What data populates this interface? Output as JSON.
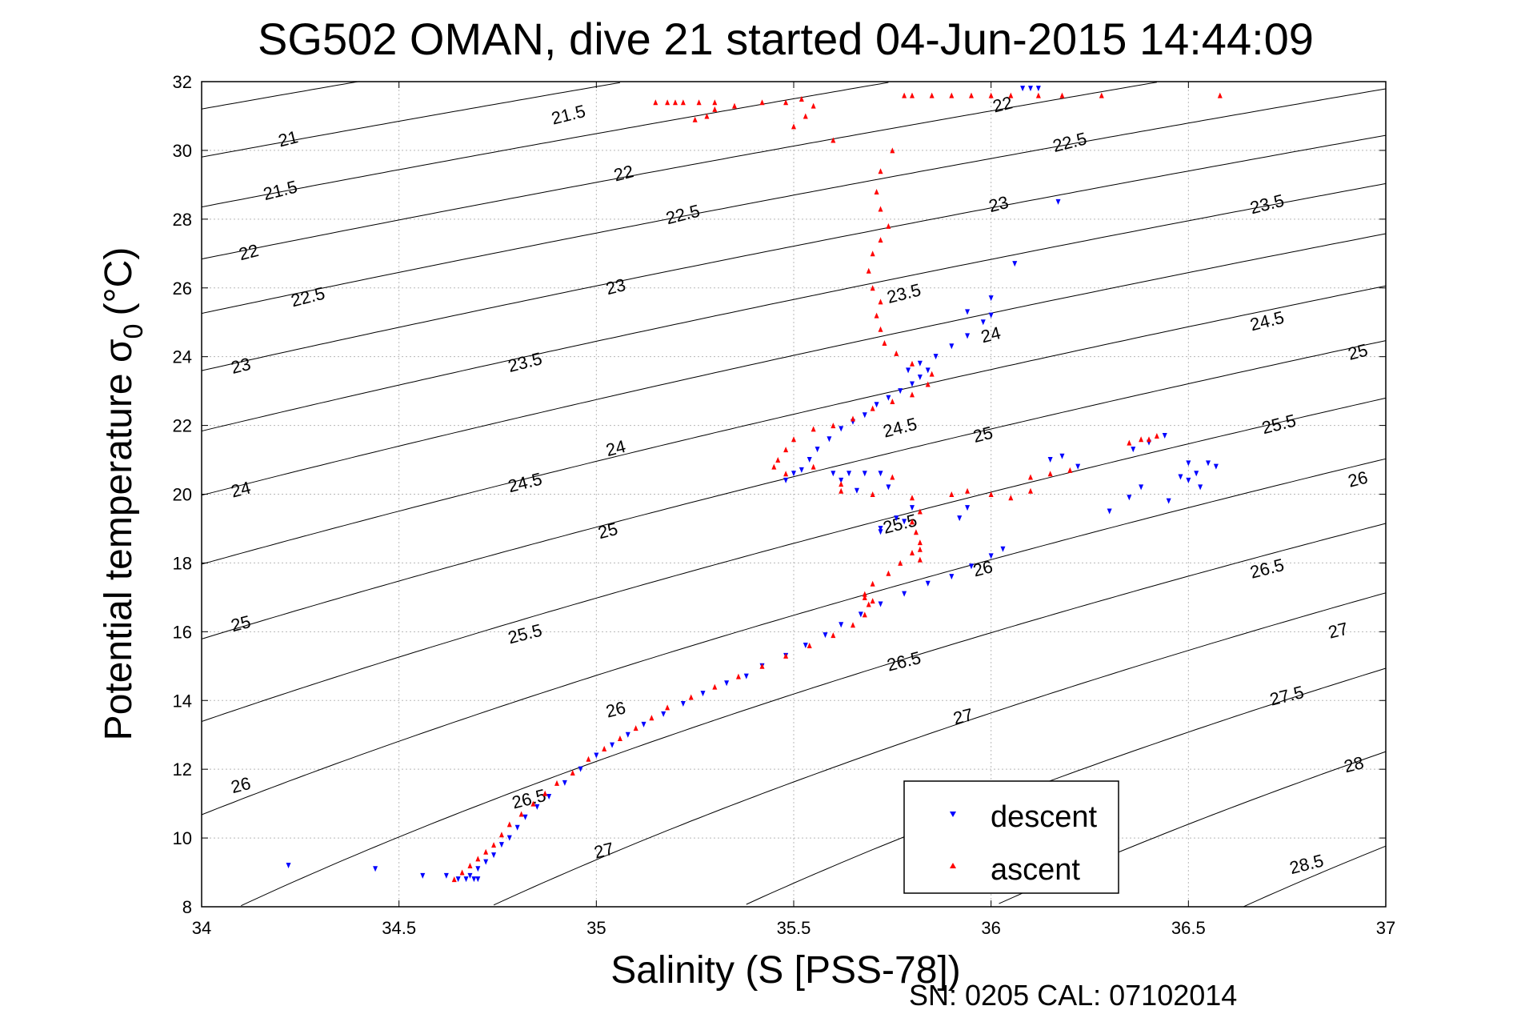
{
  "chart_data": {
    "type": "scatter",
    "title": "SG502 OMAN, dive 21 started 04-Jun-2015 14:44:09",
    "xlabel": "Salinity (S [PSS-78])",
    "ylabel_main": "Potential temperature σ",
    "ylabel_sub": "0",
    "ylabel_unit": "(°C)",
    "xlim": [
      34,
      37
    ],
    "ylim": [
      8,
      32
    ],
    "xticks": [
      34,
      34.5,
      35,
      35.5,
      36,
      36.5,
      37
    ],
    "xtick_labels": [
      "34",
      "34.5",
      "35",
      "35.5",
      "36",
      "36.5",
      "37"
    ],
    "yticks": [
      8,
      10,
      12,
      14,
      16,
      18,
      20,
      22,
      24,
      26,
      28,
      30,
      32
    ],
    "ytick_labels": [
      "8",
      "10",
      "12",
      "14",
      "16",
      "18",
      "20",
      "22",
      "24",
      "26",
      "28",
      "30",
      "32"
    ],
    "grid": true,
    "legend_position": "bottom-right",
    "footer": "SN: 0205  CAL: 07102014",
    "colors": {
      "descent": "#0000ff",
      "ascent": "#ff0000",
      "contour": "#000000"
    },
    "density_contours": {
      "levels": [
        20.5,
        21,
        21.5,
        22,
        22.5,
        23,
        23.5,
        24,
        24.5,
        25,
        25.5,
        26,
        26.5,
        27,
        27.5,
        28,
        28.5
      ],
      "labels": [
        {
          "text": "21",
          "s": 34.22,
          "t": 30.3
        },
        {
          "text": "21.5",
          "s": 34.2,
          "t": 28.8
        },
        {
          "text": "22",
          "s": 34.12,
          "t": 27.0
        },
        {
          "text": "22.5",
          "s": 34.27,
          "t": 25.7
        },
        {
          "text": "23",
          "s": 34.1,
          "t": 23.7
        },
        {
          "text": "24",
          "s": 34.1,
          "t": 20.1
        },
        {
          "text": "25",
          "s": 34.1,
          "t": 16.2
        },
        {
          "text": "26",
          "s": 34.1,
          "t": 11.5
        },
        {
          "text": "21.5",
          "s": 34.93,
          "t": 31.0
        },
        {
          "text": "22",
          "s": 35.07,
          "t": 29.3
        },
        {
          "text": "22.5",
          "s": 35.22,
          "t": 28.1
        },
        {
          "text": "23",
          "s": 35.05,
          "t": 26.0
        },
        {
          "text": "23.5",
          "s": 34.82,
          "t": 23.8
        },
        {
          "text": "24",
          "s": 35.05,
          "t": 21.3
        },
        {
          "text": "24.5",
          "s": 34.82,
          "t": 20.3
        },
        {
          "text": "25",
          "s": 35.03,
          "t": 18.9
        },
        {
          "text": "25.5",
          "s": 34.82,
          "t": 15.9
        },
        {
          "text": "26",
          "s": 35.05,
          "t": 13.7
        },
        {
          "text": "26.5",
          "s": 34.83,
          "t": 11.1
        },
        {
          "text": "27",
          "s": 35.02,
          "t": 9.6
        },
        {
          "text": "22",
          "s": 36.03,
          "t": 31.3
        },
        {
          "text": "22.5",
          "s": 36.2,
          "t": 30.2
        },
        {
          "text": "23",
          "s": 36.02,
          "t": 28.4
        },
        {
          "text": "23.5",
          "s": 35.78,
          "t": 25.8
        },
        {
          "text": "24",
          "s": 36.0,
          "t": 24.6
        },
        {
          "text": "24.5",
          "s": 35.77,
          "t": 21.9
        },
        {
          "text": "25",
          "s": 35.98,
          "t": 21.7
        },
        {
          "text": "25.5",
          "s": 35.77,
          "t": 19.1
        },
        {
          "text": "26",
          "s": 35.98,
          "t": 17.8
        },
        {
          "text": "26.5",
          "s": 35.78,
          "t": 15.1
        },
        {
          "text": "27",
          "s": 35.93,
          "t": 13.5
        },
        {
          "text": "23.5",
          "s": 36.7,
          "t": 28.4
        },
        {
          "text": "24.5",
          "s": 36.7,
          "t": 25.0
        },
        {
          "text": "25",
          "s": 36.93,
          "t": 24.1
        },
        {
          "text": "25.5",
          "s": 36.73,
          "t": 22.0
        },
        {
          "text": "26",
          "s": 36.93,
          "t": 20.4
        },
        {
          "text": "26.5",
          "s": 36.7,
          "t": 17.8
        },
        {
          "text": "27",
          "s": 36.88,
          "t": 16.0
        },
        {
          "text": "27.5",
          "s": 36.75,
          "t": 14.1
        },
        {
          "text": "28",
          "s": 36.92,
          "t": 12.1
        },
        {
          "text": "28.5",
          "s": 36.8,
          "t": 9.2
        }
      ]
    },
    "series": [
      {
        "name": "descent",
        "marker": "triangle-down",
        "points": [
          [
            34.65,
            8.8
          ],
          [
            34.67,
            8.8
          ],
          [
            34.69,
            8.8
          ],
          [
            34.7,
            8.8
          ],
          [
            34.68,
            8.9
          ],
          [
            34.7,
            9.1
          ],
          [
            34.72,
            9.3
          ],
          [
            34.74,
            9.5
          ],
          [
            34.76,
            9.8
          ],
          [
            34.78,
            10.0
          ],
          [
            34.8,
            10.3
          ],
          [
            34.82,
            10.6
          ],
          [
            34.85,
            10.9
          ],
          [
            34.88,
            11.2
          ],
          [
            34.92,
            11.6
          ],
          [
            34.96,
            12.0
          ],
          [
            35.0,
            12.4
          ],
          [
            35.04,
            12.7
          ],
          [
            35.08,
            13.0
          ],
          [
            35.12,
            13.3
          ],
          [
            35.17,
            13.6
          ],
          [
            35.22,
            13.9
          ],
          [
            35.27,
            14.2
          ],
          [
            35.33,
            14.5
          ],
          [
            35.38,
            14.7
          ],
          [
            35.42,
            15.0
          ],
          [
            35.48,
            15.3
          ],
          [
            35.53,
            15.6
          ],
          [
            35.58,
            15.9
          ],
          [
            35.62,
            16.2
          ],
          [
            35.67,
            16.5
          ],
          [
            35.72,
            16.8
          ],
          [
            35.78,
            17.1
          ],
          [
            35.84,
            17.4
          ],
          [
            35.9,
            17.6
          ],
          [
            35.95,
            17.9
          ],
          [
            36.0,
            18.2
          ],
          [
            36.03,
            18.4
          ],
          [
            35.72,
            19.0
          ],
          [
            35.76,
            19.3
          ],
          [
            35.8,
            19.6
          ],
          [
            35.72,
            18.9
          ],
          [
            35.78,
            19.2
          ],
          [
            35.92,
            19.3
          ],
          [
            35.94,
            19.6
          ],
          [
            35.5,
            20.6
          ],
          [
            35.48,
            20.4
          ],
          [
            35.52,
            20.7
          ],
          [
            35.54,
            21.0
          ],
          [
            35.56,
            21.3
          ],
          [
            35.59,
            21.6
          ],
          [
            35.62,
            21.9
          ],
          [
            35.65,
            22.1
          ],
          [
            35.68,
            22.3
          ],
          [
            35.71,
            22.6
          ],
          [
            35.74,
            22.8
          ],
          [
            35.77,
            23.0
          ],
          [
            35.8,
            23.2
          ],
          [
            35.82,
            23.4
          ],
          [
            35.84,
            23.6
          ],
          [
            35.82,
            23.8
          ],
          [
            35.79,
            23.6
          ],
          [
            35.86,
            24.0
          ],
          [
            35.9,
            24.3
          ],
          [
            35.94,
            24.6
          ],
          [
            35.98,
            25.0
          ],
          [
            36.0,
            25.2
          ],
          [
            35.94,
            25.3
          ],
          [
            36.0,
            25.7
          ],
          [
            36.06,
            26.7
          ],
          [
            36.17,
            28.5
          ],
          [
            36.08,
            31.8
          ],
          [
            36.1,
            31.8
          ],
          [
            36.12,
            31.8
          ],
          [
            35.64,
            20.6
          ],
          [
            35.68,
            20.6
          ],
          [
            35.6,
            20.6
          ],
          [
            35.74,
            20.2
          ],
          [
            35.72,
            20.6
          ],
          [
            35.66,
            20.1
          ],
          [
            35.62,
            20.4
          ],
          [
            36.15,
            21.0
          ],
          [
            36.18,
            21.1
          ],
          [
            36.22,
            20.8
          ],
          [
            36.3,
            19.5
          ],
          [
            36.35,
            19.9
          ],
          [
            36.36,
            21.3
          ],
          [
            36.4,
            21.5
          ],
          [
            36.44,
            21.7
          ],
          [
            36.38,
            20.2
          ],
          [
            36.45,
            19.8
          ],
          [
            36.5,
            20.4
          ],
          [
            36.5,
            20.9
          ],
          [
            36.52,
            20.6
          ],
          [
            36.55,
            20.9
          ],
          [
            36.48,
            20.5
          ],
          [
            36.57,
            20.8
          ],
          [
            36.53,
            20.2
          ],
          [
            34.22,
            9.2
          ],
          [
            34.44,
            9.1
          ],
          [
            34.56,
            8.9
          ],
          [
            34.62,
            8.9
          ]
        ]
      },
      {
        "name": "ascent",
        "marker": "triangle-up",
        "points": [
          [
            34.64,
            8.8
          ],
          [
            34.66,
            9.0
          ],
          [
            34.68,
            9.2
          ],
          [
            34.7,
            9.4
          ],
          [
            34.72,
            9.6
          ],
          [
            34.74,
            9.8
          ],
          [
            34.76,
            10.1
          ],
          [
            34.78,
            10.4
          ],
          [
            34.81,
            10.7
          ],
          [
            34.84,
            11.0
          ],
          [
            34.87,
            11.3
          ],
          [
            34.9,
            11.6
          ],
          [
            34.94,
            11.9
          ],
          [
            34.98,
            12.3
          ],
          [
            35.02,
            12.6
          ],
          [
            35.06,
            12.9
          ],
          [
            35.1,
            13.2
          ],
          [
            35.14,
            13.5
          ],
          [
            35.18,
            13.8
          ],
          [
            35.24,
            14.1
          ],
          [
            35.3,
            14.4
          ],
          [
            35.36,
            14.7
          ],
          [
            35.42,
            15.0
          ],
          [
            35.48,
            15.3
          ],
          [
            35.54,
            15.6
          ],
          [
            35.6,
            15.9
          ],
          [
            35.65,
            16.2
          ],
          [
            35.68,
            16.5
          ],
          [
            35.69,
            16.8
          ],
          [
            35.68,
            17.1
          ],
          [
            35.7,
            17.4
          ],
          [
            35.74,
            17.7
          ],
          [
            35.77,
            18.0
          ],
          [
            35.8,
            18.3
          ],
          [
            35.82,
            18.6
          ],
          [
            35.81,
            18.9
          ],
          [
            35.8,
            19.2
          ],
          [
            35.82,
            19.5
          ],
          [
            35.75,
            20.5
          ],
          [
            35.7,
            20.0
          ],
          [
            35.8,
            19.9
          ],
          [
            35.9,
            20.0
          ],
          [
            35.94,
            20.1
          ],
          [
            35.62,
            20.3
          ],
          [
            35.62,
            20.1
          ],
          [
            35.55,
            20.8
          ],
          [
            35.48,
            20.6
          ],
          [
            35.45,
            20.8
          ],
          [
            35.46,
            21.0
          ],
          [
            35.48,
            21.3
          ],
          [
            35.5,
            21.6
          ],
          [
            35.55,
            21.9
          ],
          [
            35.6,
            22.0
          ],
          [
            35.65,
            22.2
          ],
          [
            35.7,
            22.5
          ],
          [
            35.75,
            22.7
          ],
          [
            35.8,
            22.9
          ],
          [
            35.84,
            23.2
          ],
          [
            35.85,
            23.5
          ],
          [
            35.8,
            23.8
          ],
          [
            35.76,
            24.1
          ],
          [
            35.73,
            24.4
          ],
          [
            35.72,
            24.8
          ],
          [
            35.71,
            25.2
          ],
          [
            35.72,
            25.6
          ],
          [
            35.7,
            26.0
          ],
          [
            35.69,
            26.5
          ],
          [
            35.7,
            27.0
          ],
          [
            35.72,
            27.4
          ],
          [
            35.74,
            27.8
          ],
          [
            35.72,
            28.3
          ],
          [
            35.71,
            28.8
          ],
          [
            35.72,
            29.4
          ],
          [
            35.75,
            30.0
          ],
          [
            35.78,
            31.6
          ],
          [
            35.8,
            31.6
          ],
          [
            35.85,
            31.6
          ],
          [
            35.9,
            31.6
          ],
          [
            35.95,
            31.6
          ],
          [
            36.0,
            31.6
          ],
          [
            36.05,
            31.6
          ],
          [
            36.12,
            31.6
          ],
          [
            36.18,
            31.6
          ],
          [
            36.28,
            31.6
          ],
          [
            36.58,
            31.6
          ],
          [
            35.15,
            31.4
          ],
          [
            35.18,
            31.4
          ],
          [
            35.22,
            31.4
          ],
          [
            35.26,
            31.4
          ],
          [
            35.3,
            31.4
          ],
          [
            35.35,
            31.3
          ],
          [
            35.42,
            31.4
          ],
          [
            35.48,
            31.4
          ],
          [
            35.52,
            31.5
          ],
          [
            35.55,
            31.3
          ],
          [
            35.53,
            31.0
          ],
          [
            35.5,
            30.7
          ],
          [
            35.6,
            30.3
          ],
          [
            35.3,
            31.2
          ],
          [
            35.28,
            31.0
          ],
          [
            35.25,
            30.9
          ],
          [
            35.2,
            31.4
          ],
          [
            36.0,
            20.0
          ],
          [
            36.05,
            19.9
          ],
          [
            36.1,
            20.1
          ],
          [
            36.1,
            20.5
          ],
          [
            36.15,
            20.6
          ],
          [
            36.2,
            20.7
          ],
          [
            36.35,
            21.5
          ],
          [
            36.38,
            21.6
          ],
          [
            36.4,
            21.6
          ],
          [
            36.42,
            21.7
          ],
          [
            35.7,
            16.9
          ],
          [
            35.68,
            17.0
          ],
          [
            35.82,
            18.1
          ],
          [
            35.82,
            18.4
          ]
        ]
      }
    ],
    "legend": [
      {
        "label": "descent",
        "marker": "triangle-down"
      },
      {
        "label": "ascent",
        "marker": "triangle-up"
      }
    ]
  }
}
